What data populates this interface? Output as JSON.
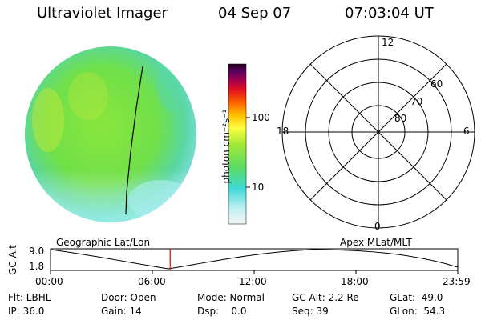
{
  "header": {
    "instrument": "Ultraviolet Imager",
    "date": "04 Sep 07",
    "time": "07:03:04 UT"
  },
  "colorbar": {
    "label": "photon cm⁻²s⁻¹",
    "ticks": [
      "100",
      "10"
    ]
  },
  "polar_plot": {
    "mlt_labels": {
      "top": "12",
      "left": "18",
      "right": "6",
      "bottom": "0"
    },
    "lat_labels": [
      "60",
      "70",
      "80"
    ]
  },
  "altitude_panel": {
    "ylabel": "GC Alt",
    "yticks": [
      "9.0",
      "1.8"
    ],
    "left_title": "Geographic Lat/Lon",
    "right_title": "Apex MLat/MLT",
    "xticks": [
      "00:00",
      "06:00",
      "12:00",
      "18:00",
      "23:59"
    ],
    "current_time_hours": 7.05
  },
  "info": {
    "flt": "Flt: LBHL",
    "ip": "IP: 36.0",
    "door": "Door: Open",
    "gain": "Gain: 14",
    "mode": "Mode: Normal",
    "dsp": "Dsp:    0.0",
    "gc_alt": "GC Alt: 2.2 Re",
    "seq": "Seq: 39",
    "glat": "GLat:  49.0",
    "glon": "GLon:  54.3"
  },
  "colors": {
    "disk_main": "#7fe33a",
    "time_marker": "#e00000"
  }
}
